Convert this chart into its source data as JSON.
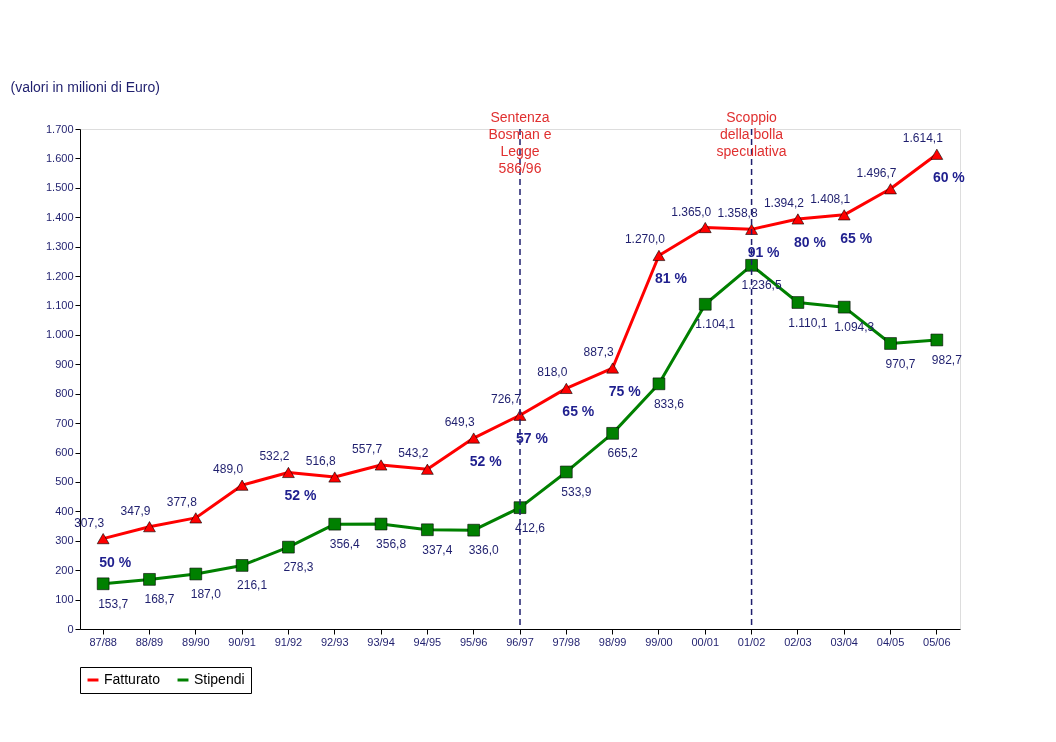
{
  "chart_data": {
    "type": "line",
    "ylabel": "(valori in milioni di Euro)",
    "categories": [
      "87/88",
      "88/89",
      "89/90",
      "90/91",
      "91/92",
      "92/93",
      "93/94",
      "94/95",
      "95/96",
      "96/97",
      "97/98",
      "98/99",
      "99/00",
      "00/01",
      "01/02",
      "02/03",
      "03/04",
      "04/05",
      "05/06"
    ],
    "series": [
      {
        "name": "Fatturato",
        "color": "#ff0000",
        "marker": "triangle",
        "values": [
          307.3,
          347.9,
          377.8,
          489.0,
          532.2,
          516.8,
          557.7,
          543.2,
          649.3,
          726.7,
          818.0,
          887.3,
          1270.0,
          1365.0,
          1358.8,
          1394.2,
          1408.1,
          1496.7,
          1614.1
        ],
        "value_labels": [
          "307,3",
          "347,9",
          "377,8",
          "489,0",
          "532,2",
          "516,8",
          "557,7",
          "543,2",
          "649,3",
          "726,7",
          "818,0",
          "887,3",
          "1.270,0",
          "1.365,0",
          "1.358,8",
          "1.394,2",
          "1.408,1",
          "1.496,7",
          "1.614,1"
        ]
      },
      {
        "name": "Stipendi",
        "color": "#008000",
        "marker": "square",
        "values": [
          153.7,
          168.7,
          187.0,
          216.1,
          278.3,
          356.4,
          356.8,
          337.4,
          336.0,
          412.6,
          533.9,
          665.2,
          833.6,
          1104.1,
          1236.5,
          1110.1,
          1094.3,
          970.7,
          982.7
        ],
        "value_labels": [
          "153,7",
          "168,7",
          "187,0",
          "216,1",
          "278,3",
          "356,4",
          "356,8",
          "337,4",
          "336,0",
          "412,6",
          "533,9",
          "665,2",
          "833,6",
          "1.104,1",
          "1.236,5",
          "1.110,1",
          "1.094,3",
          "970,7",
          "982,7"
        ]
      }
    ],
    "ylim": [
      0,
      1700
    ],
    "yticks": [
      0,
      100,
      200,
      300,
      400,
      500,
      600,
      700,
      800,
      900,
      {
        "value": 1000,
        "label": "1.000"
      },
      {
        "value": 1100,
        "label": "1.100"
      },
      {
        "value": 1200,
        "label": "1.200"
      },
      {
        "value": 1300,
        "label": "1.300"
      },
      {
        "value": 1400,
        "label": "1.400"
      },
      {
        "value": 1500,
        "label": "1.500"
      },
      {
        "value": 1600,
        "label": "1.600"
      },
      {
        "value": 1700,
        "label": "1.700"
      }
    ],
    "ref_lines": [
      {
        "axis": "x",
        "value": "96/97",
        "label": "Sentenza\nBosman e\nLegge\n586/96",
        "color": "#1f1f6e",
        "line_style": "dashed"
      },
      {
        "axis": "x",
        "value": "01/02",
        "label": "Scoppio\ndella bolla\nspeculativa",
        "color": "#1f1f6e",
        "line_style": "dashed"
      }
    ],
    "annotations": [
      {
        "text": "50 %",
        "x": "87/88",
        "y": 307.3
      },
      {
        "text": "52 %",
        "x": "91/92",
        "y": 532.2
      },
      {
        "text": "52 %",
        "x": "95/96",
        "y": 649.3
      },
      {
        "text": "57 %",
        "x": "96/97",
        "y": 726.7
      },
      {
        "text": "65 %",
        "x": "97/98",
        "y": 818.0
      },
      {
        "text": "75 %",
        "x": "98/99",
        "y": 887.3
      },
      {
        "text": "81 %",
        "x": "99/00",
        "y": 1270.0
      },
      {
        "text": "91 %",
        "x": "01/02",
        "y": 1358.8
      },
      {
        "text": "80 %",
        "x": "02/03",
        "y": 1394.2
      },
      {
        "text": "65 %",
        "x": "03/04",
        "y": 1408.1
      },
      {
        "text": "60 %",
        "x": "05/06",
        "y": 1614.1
      }
    ],
    "grid": false,
    "legend": "bottom",
    "line_style": "solid"
  }
}
